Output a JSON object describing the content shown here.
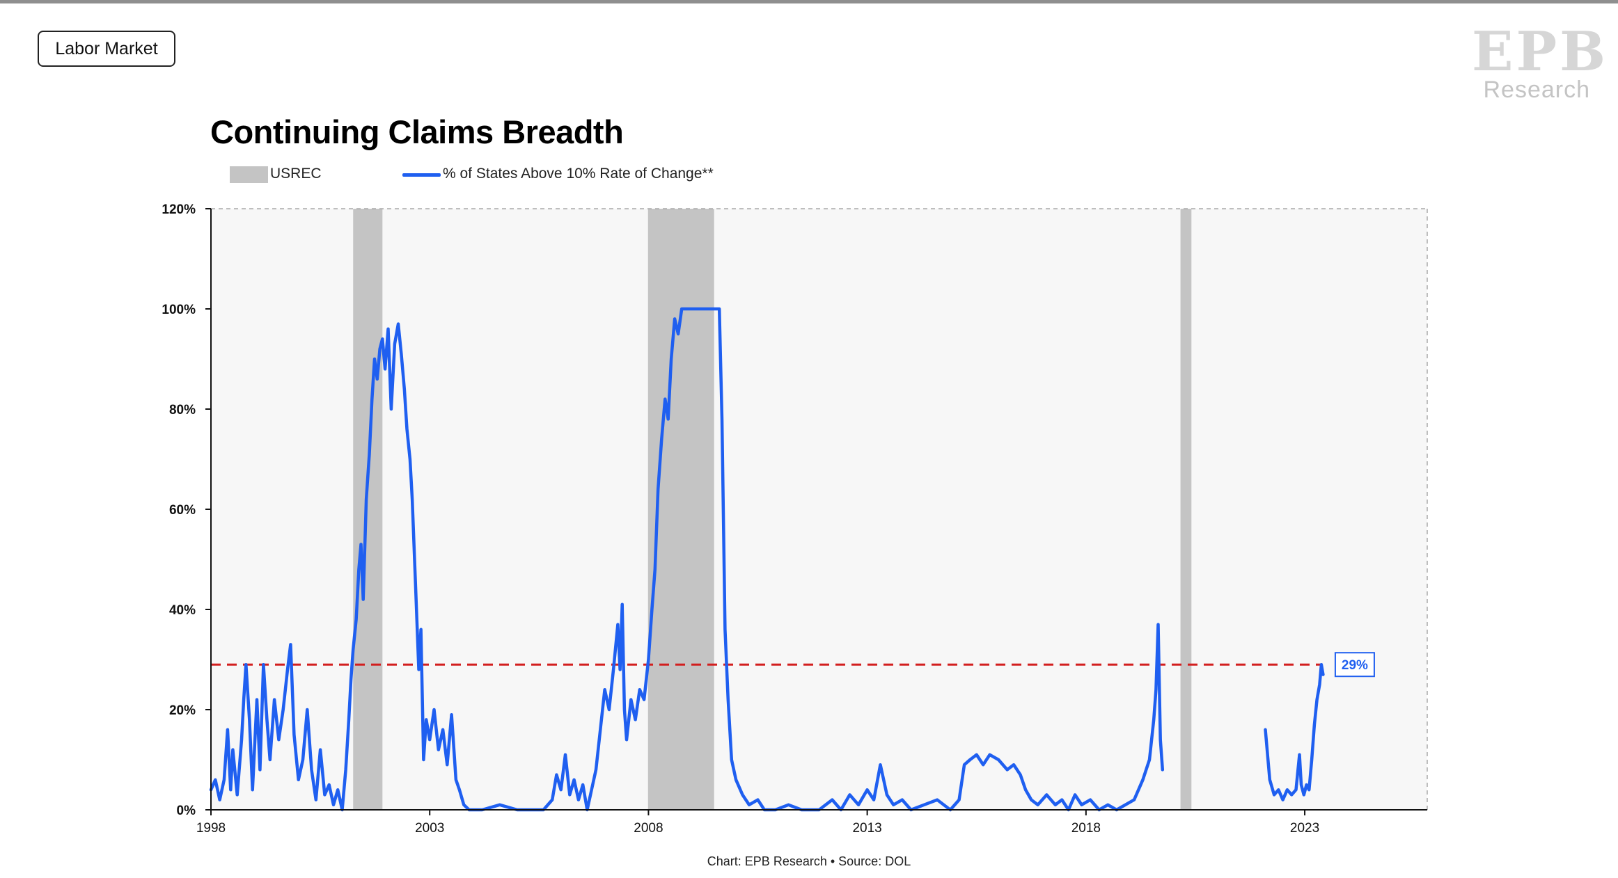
{
  "tag": {
    "label": "Labor Market"
  },
  "logo": {
    "mark": "EPB",
    "sub": "Research"
  },
  "footer": {
    "credit": "Chart: EPB Research •  Source: DOL"
  },
  "colors": {
    "line": "#1f5ff0",
    "recession": "#c4c4c4",
    "threshold": "#d21f1f",
    "plot_bg": "#f7f7f7"
  },
  "chart_data": {
    "type": "line",
    "title": "Continuing Claims Breadth",
    "xlabel": "",
    "ylabel": "",
    "xlim": [
      1998,
      2025.8
    ],
    "ylim": [
      0,
      120
    ],
    "x_ticks": [
      1998,
      2003,
      2008,
      2013,
      2018,
      2023
    ],
    "y_ticks": [
      0,
      20,
      40,
      60,
      80,
      100,
      120
    ],
    "y_tick_labels": [
      "0%",
      "20%",
      "40%",
      "60%",
      "80%",
      "100%",
      "120%"
    ],
    "legend": [
      {
        "name": "USREC",
        "kind": "area"
      },
      {
        "name": "% of States Above 10% Rate of Change**",
        "kind": "line"
      }
    ],
    "legend_position": "top-left",
    "recessions": [
      {
        "start": 2001.25,
        "end": 2001.92
      },
      {
        "start": 2007.99,
        "end": 2009.5
      },
      {
        "start": 2020.16,
        "end": 2020.41
      }
    ],
    "threshold": {
      "value": 29,
      "style": "dashed"
    },
    "latest_label": "29%",
    "grid": false,
    "series": [
      {
        "name": "% of States Above 10% Rate of Change**",
        "segments": [
          [
            [
              1998.0,
              4
            ],
            [
              1998.1,
              6
            ],
            [
              1998.2,
              2
            ],
            [
              1998.3,
              6
            ],
            [
              1998.38,
              16
            ],
            [
              1998.45,
              4
            ],
            [
              1998.5,
              12
            ],
            [
              1998.6,
              3
            ],
            [
              1998.7,
              14
            ],
            [
              1998.75,
              22
            ],
            [
              1998.8,
              29
            ],
            [
              1998.88,
              18
            ],
            [
              1998.95,
              4
            ],
            [
              1999.05,
              22
            ],
            [
              1999.12,
              8
            ],
            [
              1999.2,
              29
            ],
            [
              1999.28,
              18
            ],
            [
              1999.35,
              10
            ],
            [
              1999.45,
              22
            ],
            [
              1999.55,
              14
            ],
            [
              1999.65,
              20
            ],
            [
              1999.75,
              28
            ],
            [
              1999.82,
              33
            ],
            [
              1999.9,
              15
            ],
            [
              2000.0,
              6
            ],
            [
              2000.1,
              10
            ],
            [
              2000.2,
              20
            ],
            [
              2000.3,
              8
            ],
            [
              2000.4,
              2
            ],
            [
              2000.5,
              12
            ],
            [
              2000.6,
              3
            ],
            [
              2000.7,
              5
            ],
            [
              2000.8,
              1
            ],
            [
              2000.9,
              4
            ],
            [
              2001.0,
              0
            ],
            [
              2001.08,
              8
            ],
            [
              2001.15,
              18
            ],
            [
              2001.2,
              26
            ],
            [
              2001.25,
              32
            ],
            [
              2001.32,
              38
            ],
            [
              2001.38,
              48
            ],
            [
              2001.43,
              53
            ],
            [
              2001.48,
              42
            ],
            [
              2001.55,
              62
            ],
            [
              2001.62,
              71
            ],
            [
              2001.68,
              82
            ],
            [
              2001.74,
              90
            ],
            [
              2001.8,
              86
            ],
            [
              2001.86,
              92
            ],
            [
              2001.92,
              94
            ],
            [
              2001.98,
              88
            ],
            [
              2002.05,
              96
            ],
            [
              2002.12,
              80
            ],
            [
              2002.2,
              93
            ],
            [
              2002.28,
              97
            ],
            [
              2002.35,
              91
            ],
            [
              2002.42,
              84
            ],
            [
              2002.48,
              76
            ],
            [
              2002.55,
              70
            ],
            [
              2002.6,
              62
            ],
            [
              2002.68,
              44
            ],
            [
              2002.75,
              28
            ],
            [
              2002.8,
              36
            ],
            [
              2002.86,
              10
            ],
            [
              2002.92,
              18
            ],
            [
              2003.0,
              14
            ],
            [
              2003.1,
              20
            ],
            [
              2003.2,
              12
            ],
            [
              2003.3,
              16
            ],
            [
              2003.4,
              9
            ],
            [
              2003.5,
              19
            ],
            [
              2003.6,
              6
            ],
            [
              2003.68,
              4
            ],
            [
              2003.78,
              1
            ],
            [
              2003.9,
              0
            ],
            [
              2004.2,
              0
            ],
            [
              2004.6,
              1
            ],
            [
              2005.0,
              0
            ],
            [
              2005.6,
              0
            ],
            [
              2005.8,
              2
            ],
            [
              2005.9,
              7
            ],
            [
              2006.0,
              4
            ],
            [
              2006.1,
              11
            ],
            [
              2006.2,
              3
            ],
            [
              2006.3,
              6
            ],
            [
              2006.4,
              2
            ],
            [
              2006.5,
              5
            ],
            [
              2006.6,
              0
            ],
            [
              2006.7,
              4
            ],
            [
              2006.8,
              8
            ],
            [
              2006.9,
              16
            ],
            [
              2007.0,
              24
            ],
            [
              2007.1,
              20
            ],
            [
              2007.2,
              28
            ],
            [
              2007.3,
              37
            ],
            [
              2007.35,
              28
            ],
            [
              2007.4,
              41
            ],
            [
              2007.45,
              20
            ],
            [
              2007.5,
              14
            ],
            [
              2007.6,
              22
            ],
            [
              2007.7,
              18
            ],
            [
              2007.8,
              24
            ],
            [
              2007.9,
              22
            ],
            [
              2008.0,
              30
            ],
            [
              2008.08,
              40
            ],
            [
              2008.15,
              48
            ],
            [
              2008.22,
              64
            ],
            [
              2008.3,
              74
            ],
            [
              2008.38,
              82
            ],
            [
              2008.45,
              78
            ],
            [
              2008.52,
              90
            ],
            [
              2008.6,
              98
            ],
            [
              2008.68,
              95
            ],
            [
              2008.76,
              100
            ],
            [
              2009.0,
              100
            ],
            [
              2009.5,
              100
            ],
            [
              2009.62,
              100
            ],
            [
              2009.68,
              78
            ],
            [
              2009.75,
              36
            ],
            [
              2009.82,
              22
            ],
            [
              2009.9,
              10
            ],
            [
              2010.0,
              6
            ],
            [
              2010.15,
              3
            ],
            [
              2010.3,
              1
            ],
            [
              2010.5,
              2
            ],
            [
              2010.65,
              0
            ],
            [
              2010.9,
              0
            ],
            [
              2011.2,
              1
            ],
            [
              2011.5,
              0
            ],
            [
              2011.9,
              0
            ],
            [
              2012.2,
              2
            ],
            [
              2012.4,
              0
            ],
            [
              2012.6,
              3
            ],
            [
              2012.8,
              1
            ],
            [
              2013.0,
              4
            ],
            [
              2013.15,
              2
            ],
            [
              2013.3,
              9
            ],
            [
              2013.45,
              3
            ],
            [
              2013.6,
              1
            ],
            [
              2013.8,
              2
            ],
            [
              2014.0,
              0
            ],
            [
              2014.3,
              1
            ],
            [
              2014.6,
              2
            ],
            [
              2014.9,
              0
            ],
            [
              2015.1,
              2
            ],
            [
              2015.22,
              9
            ],
            [
              2015.35,
              10
            ],
            [
              2015.5,
              11
            ],
            [
              2015.65,
              9
            ],
            [
              2015.8,
              11
            ],
            [
              2016.0,
              10
            ],
            [
              2016.2,
              8
            ],
            [
              2016.35,
              9
            ],
            [
              2016.5,
              7
            ],
            [
              2016.62,
              4
            ],
            [
              2016.75,
              2
            ],
            [
              2016.9,
              1
            ],
            [
              2017.1,
              3
            ],
            [
              2017.3,
              1
            ],
            [
              2017.45,
              2
            ],
            [
              2017.6,
              0
            ],
            [
              2017.75,
              3
            ],
            [
              2017.9,
              1
            ],
            [
              2018.1,
              2
            ],
            [
              2018.3,
              0
            ],
            [
              2018.5,
              1
            ],
            [
              2018.7,
              0
            ],
            [
              2018.9,
              1
            ],
            [
              2019.1,
              2
            ],
            [
              2019.3,
              6
            ],
            [
              2019.45,
              10
            ],
            [
              2019.55,
              18
            ],
            [
              2019.6,
              24
            ],
            [
              2019.65,
              37
            ],
            [
              2019.7,
              14
            ],
            [
              2019.75,
              8
            ]
          ],
          [
            [
              2022.1,
              16
            ],
            [
              2022.2,
              6
            ],
            [
              2022.3,
              3
            ],
            [
              2022.4,
              4
            ],
            [
              2022.5,
              2
            ],
            [
              2022.6,
              4
            ],
            [
              2022.7,
              3
            ],
            [
              2022.8,
              4
            ],
            [
              2022.88,
              11
            ],
            [
              2022.92,
              5
            ],
            [
              2022.98,
              3
            ],
            [
              2023.04,
              5
            ],
            [
              2023.1,
              4
            ],
            [
              2023.16,
              10
            ],
            [
              2023.22,
              17
            ],
            [
              2023.28,
              22
            ],
            [
              2023.34,
              25
            ],
            [
              2023.38,
              29
            ],
            [
              2023.42,
              27
            ]
          ]
        ]
      }
    ]
  }
}
